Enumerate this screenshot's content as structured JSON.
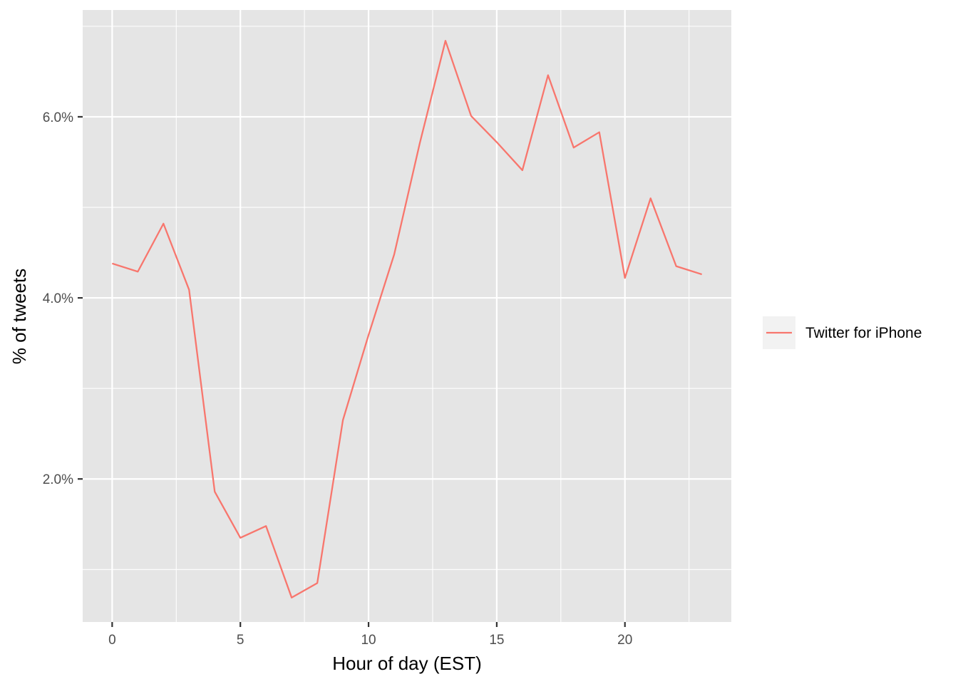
{
  "chart_data": {
    "type": "line",
    "xlabel": "Hour of day (EST)",
    "ylabel": "% of tweets",
    "x_ticks": [
      0,
      5,
      10,
      15,
      20
    ],
    "x_tick_labels": [
      "0",
      "5",
      "10",
      "15",
      "20"
    ],
    "y_ticks": [
      0.02,
      0.04,
      0.06
    ],
    "y_tick_labels": [
      "2.0%",
      "4.0%",
      "6.0%"
    ],
    "xlim": [
      -1.15,
      24.15
    ],
    "ylim": [
      0.0042,
      0.0718
    ],
    "grid": true,
    "panel_background": "#e5e5e5",
    "grid_color": "#ffffff",
    "legend_position": "right",
    "x": [
      0,
      1,
      2,
      3,
      4,
      5,
      6,
      7,
      8,
      9,
      10,
      11,
      12,
      13,
      14,
      15,
      16,
      17,
      18,
      19,
      20,
      21,
      22,
      23
    ],
    "series": [
      {
        "name": "Twitter for iPhone",
        "color": "#f8766d",
        "values": [
          0.0438,
          0.0429,
          0.0482,
          0.0409,
          0.0186,
          0.0135,
          0.0148,
          0.0069,
          0.0085,
          0.0265,
          0.0359,
          0.0448,
          0.0571,
          0.0684,
          0.0601,
          0.0572,
          0.0541,
          0.0646,
          0.0566,
          0.0583,
          0.0422,
          0.051,
          0.0435,
          0.0426
        ]
      }
    ]
  }
}
